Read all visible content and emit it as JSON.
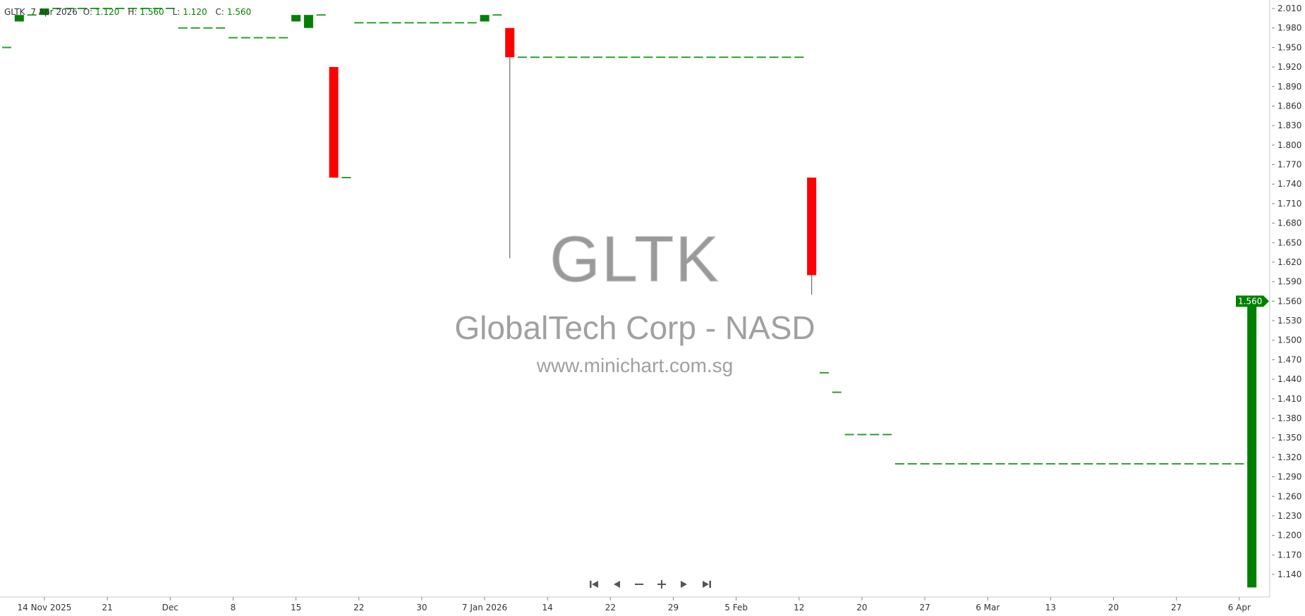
{
  "header": {
    "symbol": "GLTK",
    "date": "7 Apr 2026",
    "o_label": "O:",
    "o": "1.120",
    "h_label": "H:",
    "h": "1.560",
    "l_label": "L:",
    "l": "1.120",
    "c_label": "C:",
    "c": "1.560"
  },
  "watermark": {
    "symbol": "GLTK",
    "name": "GlobalTech Corp - NASD",
    "site": "www.minichart.com.sg"
  },
  "navigation": {
    "first": "first-icon",
    "prev": "prev-icon",
    "zoom_out": "minus-icon",
    "zoom_in": "plus-icon",
    "next": "next-icon",
    "last": "last-icon"
  },
  "colors": {
    "up": "#008000",
    "down": "#ff0000",
    "flat": "#2e9e2e",
    "wick": "#777777",
    "last_price_bg": "#008000"
  },
  "chart_data": {
    "type": "candlestick",
    "ylim": [
      1.12,
      2.02
    ],
    "last_price": "1.560",
    "y_ticks": [
      "2.010",
      "1.980",
      "1.950",
      "1.920",
      "1.890",
      "1.860",
      "1.830",
      "1.800",
      "1.770",
      "1.740",
      "1.710",
      "1.680",
      "1.650",
      "1.620",
      "1.590",
      "1.560",
      "1.530",
      "1.500",
      "1.470",
      "1.440",
      "1.410",
      "1.380",
      "1.350",
      "1.320",
      "1.290",
      "1.260",
      "1.230",
      "1.200",
      "1.170",
      "1.140"
    ],
    "x_ticks": [
      {
        "label": "14 Nov 2025",
        "date": "2025-11-14"
      },
      {
        "label": "21",
        "date": "2025-11-21"
      },
      {
        "label": "Dec",
        "date": "2025-12-01"
      },
      {
        "label": "8",
        "date": "2025-12-08"
      },
      {
        "label": "15",
        "date": "2025-12-15"
      },
      {
        "label": "22",
        "date": "2025-12-22"
      },
      {
        "label": "30",
        "date": "2025-12-30"
      },
      {
        "label": "7 Jan 2026",
        "date": "2026-01-07"
      },
      {
        "label": "14",
        "date": "2026-01-14"
      },
      {
        "label": "22",
        "date": "2026-01-22"
      },
      {
        "label": "29",
        "date": "2026-01-29"
      },
      {
        "label": "5 Feb",
        "date": "2026-02-05"
      },
      {
        "label": "12",
        "date": "2026-02-12"
      },
      {
        "label": "20",
        "date": "2026-02-20"
      },
      {
        "label": "27",
        "date": "2026-02-27"
      },
      {
        "label": "6 Mar",
        "date": "2026-03-06"
      },
      {
        "label": "13",
        "date": "2026-03-13"
      },
      {
        "label": "20",
        "date": "2026-03-20"
      },
      {
        "label": "27",
        "date": "2026-03-27"
      },
      {
        "label": "6 Apr",
        "date": "2026-04-06"
      }
    ],
    "candles": [
      {
        "d": "2025-11-11",
        "o": 1.95,
        "h": 1.95,
        "l": 1.95,
        "c": 1.95
      },
      {
        "d": "2025-11-12",
        "o": 1.99,
        "h": 2.0,
        "l": 1.99,
        "c": 2.0
      },
      {
        "d": "2025-11-13",
        "o": 2.0,
        "h": 2.0,
        "l": 2.0,
        "c": 2.0
      },
      {
        "d": "2025-11-14",
        "o": 2.0,
        "h": 2.01,
        "l": 2.0,
        "c": 2.01
      },
      {
        "d": "2025-11-17",
        "o": 2.01,
        "h": 2.01,
        "l": 2.01,
        "c": 2.01
      },
      {
        "d": "2025-11-18",
        "o": 2.01,
        "h": 2.01,
        "l": 2.01,
        "c": 2.01
      },
      {
        "d": "2025-11-19",
        "o": 2.01,
        "h": 2.01,
        "l": 2.01,
        "c": 2.01
      },
      {
        "d": "2025-11-20",
        "o": 2.01,
        "h": 2.01,
        "l": 2.01,
        "c": 2.01
      },
      {
        "d": "2025-11-21",
        "o": 2.01,
        "h": 2.01,
        "l": 2.01,
        "c": 2.01
      },
      {
        "d": "2025-11-24",
        "o": 2.01,
        "h": 2.01,
        "l": 2.01,
        "c": 2.01
      },
      {
        "d": "2025-11-25",
        "o": 2.01,
        "h": 2.01,
        "l": 2.01,
        "c": 2.01
      },
      {
        "d": "2025-11-26",
        "o": 2.01,
        "h": 2.01,
        "l": 2.01,
        "c": 2.01
      },
      {
        "d": "2025-11-28",
        "o": 2.01,
        "h": 2.01,
        "l": 2.01,
        "c": 2.01
      },
      {
        "d": "2025-12-01",
        "o": 2.01,
        "h": 2.01,
        "l": 2.01,
        "c": 2.01
      },
      {
        "d": "2025-12-02",
        "o": 1.98,
        "h": 1.98,
        "l": 1.98,
        "c": 1.98
      },
      {
        "d": "2025-12-03",
        "o": 1.98,
        "h": 1.98,
        "l": 1.98,
        "c": 1.98
      },
      {
        "d": "2025-12-04",
        "o": 1.98,
        "h": 1.98,
        "l": 1.98,
        "c": 1.98
      },
      {
        "d": "2025-12-05",
        "o": 1.98,
        "h": 1.98,
        "l": 1.98,
        "c": 1.98
      },
      {
        "d": "2025-12-08",
        "o": 1.965,
        "h": 1.965,
        "l": 1.965,
        "c": 1.965
      },
      {
        "d": "2025-12-09",
        "o": 1.965,
        "h": 1.965,
        "l": 1.965,
        "c": 1.965
      },
      {
        "d": "2025-12-10",
        "o": 1.965,
        "h": 1.965,
        "l": 1.965,
        "c": 1.965
      },
      {
        "d": "2025-12-11",
        "o": 1.965,
        "h": 1.965,
        "l": 1.965,
        "c": 1.965
      },
      {
        "d": "2025-12-12",
        "o": 1.965,
        "h": 1.965,
        "l": 1.965,
        "c": 1.965
      },
      {
        "d": "2025-12-15",
        "o": 1.99,
        "h": 2.0,
        "l": 1.99,
        "c": 2.0
      },
      {
        "d": "2025-12-16",
        "o": 1.98,
        "h": 2.0,
        "l": 1.98,
        "c": 2.0
      },
      {
        "d": "2025-12-17",
        "o": 2.0,
        "h": 2.0,
        "l": 2.0,
        "c": 2.0
      },
      {
        "d": "2025-12-18",
        "o": 1.92,
        "h": 1.92,
        "l": 1.75,
        "c": 1.75
      },
      {
        "d": "2025-12-19",
        "o": 1.75,
        "h": 1.75,
        "l": 1.75,
        "c": 1.75
      },
      {
        "d": "2025-12-22",
        "o": 1.988,
        "h": 1.988,
        "l": 1.988,
        "c": 1.988
      },
      {
        "d": "2025-12-23",
        "o": 1.988,
        "h": 1.988,
        "l": 1.988,
        "c": 1.988
      },
      {
        "d": "2025-12-24",
        "o": 1.988,
        "h": 1.988,
        "l": 1.988,
        "c": 1.988
      },
      {
        "d": "2025-12-26",
        "o": 1.988,
        "h": 1.988,
        "l": 1.988,
        "c": 1.988
      },
      {
        "d": "2025-12-29",
        "o": 1.988,
        "h": 1.988,
        "l": 1.988,
        "c": 1.988
      },
      {
        "d": "2025-12-30",
        "o": 1.988,
        "h": 1.988,
        "l": 1.988,
        "c": 1.988
      },
      {
        "d": "2025-12-31",
        "o": 1.988,
        "h": 1.988,
        "l": 1.988,
        "c": 1.988
      },
      {
        "d": "2026-01-02",
        "o": 1.988,
        "h": 1.988,
        "l": 1.988,
        "c": 1.988
      },
      {
        "d": "2026-01-05",
        "o": 1.988,
        "h": 1.988,
        "l": 1.988,
        "c": 1.988
      },
      {
        "d": "2026-01-06",
        "o": 1.988,
        "h": 1.988,
        "l": 1.988,
        "c": 1.988
      },
      {
        "d": "2026-01-07",
        "o": 1.99,
        "h": 2.0,
        "l": 1.99,
        "c": 2.0
      },
      {
        "d": "2026-01-08",
        "o": 2.0,
        "h": 2.0,
        "l": 2.0,
        "c": 2.0
      },
      {
        "d": "2026-01-09",
        "o": 1.98,
        "h": 1.98,
        "l": 1.626,
        "c": 1.935
      },
      {
        "d": "2026-01-12",
        "o": 1.935,
        "h": 1.935,
        "l": 1.935,
        "c": 1.935
      },
      {
        "d": "2026-01-13",
        "o": 1.935,
        "h": 1.935,
        "l": 1.935,
        "c": 1.935
      },
      {
        "d": "2026-01-14",
        "o": 1.935,
        "h": 1.935,
        "l": 1.935,
        "c": 1.935
      },
      {
        "d": "2026-01-15",
        "o": 1.935,
        "h": 1.935,
        "l": 1.935,
        "c": 1.935
      },
      {
        "d": "2026-01-16",
        "o": 1.935,
        "h": 1.935,
        "l": 1.935,
        "c": 1.935
      },
      {
        "d": "2026-01-20",
        "o": 1.935,
        "h": 1.935,
        "l": 1.935,
        "c": 1.935
      },
      {
        "d": "2026-01-21",
        "o": 1.935,
        "h": 1.935,
        "l": 1.935,
        "c": 1.935
      },
      {
        "d": "2026-01-22",
        "o": 1.935,
        "h": 1.935,
        "l": 1.935,
        "c": 1.935
      },
      {
        "d": "2026-01-23",
        "o": 1.935,
        "h": 1.935,
        "l": 1.935,
        "c": 1.935
      },
      {
        "d": "2026-01-26",
        "o": 1.935,
        "h": 1.935,
        "l": 1.935,
        "c": 1.935
      },
      {
        "d": "2026-01-27",
        "o": 1.935,
        "h": 1.935,
        "l": 1.935,
        "c": 1.935
      },
      {
        "d": "2026-01-28",
        "o": 1.935,
        "h": 1.935,
        "l": 1.935,
        "c": 1.935
      },
      {
        "d": "2026-01-29",
        "o": 1.935,
        "h": 1.935,
        "l": 1.935,
        "c": 1.935
      },
      {
        "d": "2026-01-30",
        "o": 1.935,
        "h": 1.935,
        "l": 1.935,
        "c": 1.935
      },
      {
        "d": "2026-02-02",
        "o": 1.935,
        "h": 1.935,
        "l": 1.935,
        "c": 1.935
      },
      {
        "d": "2026-02-03",
        "o": 1.935,
        "h": 1.935,
        "l": 1.935,
        "c": 1.935
      },
      {
        "d": "2026-02-04",
        "o": 1.935,
        "h": 1.935,
        "l": 1.935,
        "c": 1.935
      },
      {
        "d": "2026-02-05",
        "o": 1.935,
        "h": 1.935,
        "l": 1.935,
        "c": 1.935
      },
      {
        "d": "2026-02-06",
        "o": 1.935,
        "h": 1.935,
        "l": 1.935,
        "c": 1.935
      },
      {
        "d": "2026-02-09",
        "o": 1.935,
        "h": 1.935,
        "l": 1.935,
        "c": 1.935
      },
      {
        "d": "2026-02-10",
        "o": 1.935,
        "h": 1.935,
        "l": 1.935,
        "c": 1.935
      },
      {
        "d": "2026-02-11",
        "o": 1.935,
        "h": 1.935,
        "l": 1.935,
        "c": 1.935
      },
      {
        "d": "2026-02-12",
        "o": 1.935,
        "h": 1.935,
        "l": 1.935,
        "c": 1.935
      },
      {
        "d": "2026-02-13",
        "o": 1.75,
        "h": 1.75,
        "l": 1.57,
        "c": 1.6
      },
      {
        "d": "2026-02-17",
        "o": 1.45,
        "h": 1.45,
        "l": 1.45,
        "c": 1.45
      },
      {
        "d": "2026-02-18",
        "o": 1.42,
        "h": 1.42,
        "l": 1.42,
        "c": 1.42
      },
      {
        "d": "2026-02-19",
        "o": 1.355,
        "h": 1.355,
        "l": 1.355,
        "c": 1.355
      },
      {
        "d": "2026-02-20",
        "o": 1.355,
        "h": 1.355,
        "l": 1.355,
        "c": 1.355
      },
      {
        "d": "2026-02-23",
        "o": 1.355,
        "h": 1.355,
        "l": 1.355,
        "c": 1.355
      },
      {
        "d": "2026-02-24",
        "o": 1.355,
        "h": 1.355,
        "l": 1.355,
        "c": 1.355
      },
      {
        "d": "2026-02-25",
        "o": 1.31,
        "h": 1.31,
        "l": 1.31,
        "c": 1.31
      },
      {
        "d": "2026-02-26",
        "o": 1.31,
        "h": 1.31,
        "l": 1.31,
        "c": 1.31
      },
      {
        "d": "2026-02-27",
        "o": 1.31,
        "h": 1.31,
        "l": 1.31,
        "c": 1.31
      },
      {
        "d": "2026-03-02",
        "o": 1.31,
        "h": 1.31,
        "l": 1.31,
        "c": 1.31
      },
      {
        "d": "2026-03-03",
        "o": 1.31,
        "h": 1.31,
        "l": 1.31,
        "c": 1.31
      },
      {
        "d": "2026-03-04",
        "o": 1.31,
        "h": 1.31,
        "l": 1.31,
        "c": 1.31
      },
      {
        "d": "2026-03-05",
        "o": 1.31,
        "h": 1.31,
        "l": 1.31,
        "c": 1.31
      },
      {
        "d": "2026-03-06",
        "o": 1.31,
        "h": 1.31,
        "l": 1.31,
        "c": 1.31
      },
      {
        "d": "2026-03-09",
        "o": 1.31,
        "h": 1.31,
        "l": 1.31,
        "c": 1.31
      },
      {
        "d": "2026-03-10",
        "o": 1.31,
        "h": 1.31,
        "l": 1.31,
        "c": 1.31
      },
      {
        "d": "2026-03-11",
        "o": 1.31,
        "h": 1.31,
        "l": 1.31,
        "c": 1.31
      },
      {
        "d": "2026-03-12",
        "o": 1.31,
        "h": 1.31,
        "l": 1.31,
        "c": 1.31
      },
      {
        "d": "2026-03-13",
        "o": 1.31,
        "h": 1.31,
        "l": 1.31,
        "c": 1.31
      },
      {
        "d": "2026-03-16",
        "o": 1.31,
        "h": 1.31,
        "l": 1.31,
        "c": 1.31
      },
      {
        "d": "2026-03-17",
        "o": 1.31,
        "h": 1.31,
        "l": 1.31,
        "c": 1.31
      },
      {
        "d": "2026-03-18",
        "o": 1.31,
        "h": 1.31,
        "l": 1.31,
        "c": 1.31
      },
      {
        "d": "2026-03-19",
        "o": 1.31,
        "h": 1.31,
        "l": 1.31,
        "c": 1.31
      },
      {
        "d": "2026-03-20",
        "o": 1.31,
        "h": 1.31,
        "l": 1.31,
        "c": 1.31
      },
      {
        "d": "2026-03-23",
        "o": 1.31,
        "h": 1.31,
        "l": 1.31,
        "c": 1.31
      },
      {
        "d": "2026-03-24",
        "o": 1.31,
        "h": 1.31,
        "l": 1.31,
        "c": 1.31
      },
      {
        "d": "2026-03-25",
        "o": 1.31,
        "h": 1.31,
        "l": 1.31,
        "c": 1.31
      },
      {
        "d": "2026-03-26",
        "o": 1.31,
        "h": 1.31,
        "l": 1.31,
        "c": 1.31
      },
      {
        "d": "2026-03-27",
        "o": 1.31,
        "h": 1.31,
        "l": 1.31,
        "c": 1.31
      },
      {
        "d": "2026-03-30",
        "o": 1.31,
        "h": 1.31,
        "l": 1.31,
        "c": 1.31
      },
      {
        "d": "2026-03-31",
        "o": 1.31,
        "h": 1.31,
        "l": 1.31,
        "c": 1.31
      },
      {
        "d": "2026-04-01",
        "o": 1.31,
        "h": 1.31,
        "l": 1.31,
        "c": 1.31
      },
      {
        "d": "2026-04-02",
        "o": 1.31,
        "h": 1.31,
        "l": 1.31,
        "c": 1.31
      },
      {
        "d": "2026-04-06",
        "o": 1.31,
        "h": 1.31,
        "l": 1.31,
        "c": 1.31
      },
      {
        "d": "2026-04-07",
        "o": 1.12,
        "h": 1.56,
        "l": 1.12,
        "c": 1.56
      }
    ]
  }
}
